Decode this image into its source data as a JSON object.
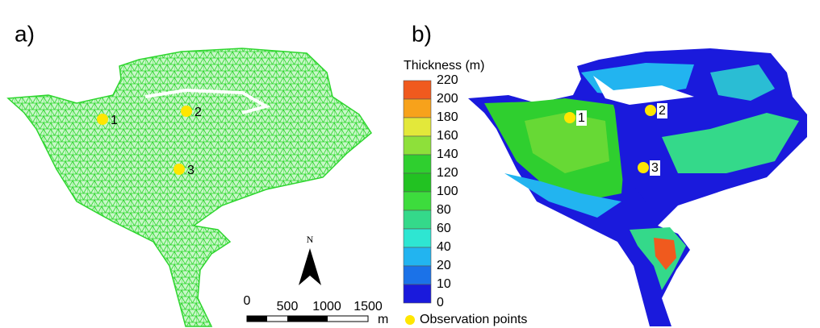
{
  "panels": [
    {
      "label": "a)"
    },
    {
      "label": "b)"
    }
  ],
  "mesh_points": [
    "1",
    "2",
    "3"
  ],
  "thickness_points": [
    "1",
    "2",
    "3"
  ],
  "legend": {
    "title": "Thickness (m)",
    "levels": [
      220,
      200,
      180,
      160,
      140,
      120,
      100,
      80,
      60,
      40,
      20,
      10,
      0
    ],
    "colors": [
      "#f05a1e",
      "#f7a21b",
      "#e3e83a",
      "#8ee03a",
      "#2fcf2f",
      "#22c222",
      "#3ddc3d",
      "#34d98a",
      "#2ee6d2",
      "#22b4f0",
      "#1b72e8",
      "#1a1adc"
    ],
    "point_label": "Observation points"
  },
  "scale_bar": {
    "labels": [
      "0",
      "500",
      "1000",
      "1500"
    ],
    "unit": "m"
  },
  "north": "N"
}
